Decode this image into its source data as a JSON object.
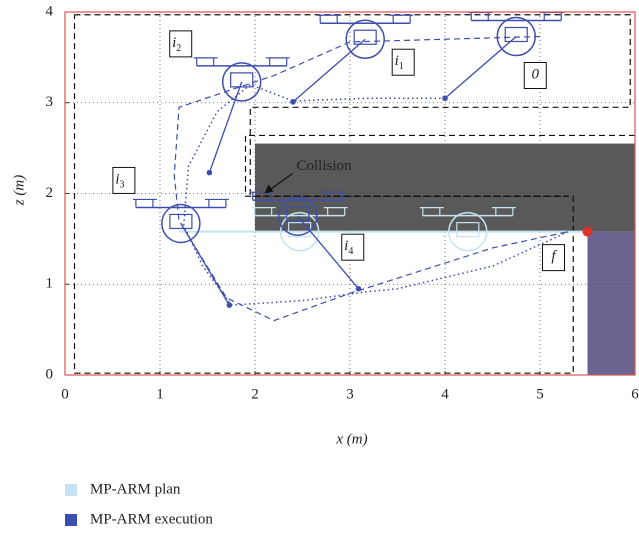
{
  "chart_data": {
    "type": "trajectory",
    "xlabel": "x (m)",
    "ylabel": "z (m)",
    "xlim": [
      0,
      6
    ],
    "ylim": [
      0,
      4
    ],
    "xticks": [
      0,
      1,
      2,
      3,
      4,
      5,
      6
    ],
    "yticks": [
      0,
      1,
      2,
      3,
      4
    ],
    "grid": true,
    "frame_color": "#d9534f",
    "obstacles": [
      {
        "x": [
          2,
          6
        ],
        "z": [
          1.58,
          2.55
        ],
        "color": "#595959"
      },
      {
        "x": [
          5.5,
          6
        ],
        "z": [
          0,
          1.58
        ],
        "color": "#6b6490"
      }
    ],
    "regions": [
      {
        "x": [
          0.1,
          5.95,
          5.95,
          1.95,
          1.95,
          5.35,
          5.35,
          0.1,
          0.1
        ],
        "z": [
          3.97,
          3.97,
          2.95,
          2.95,
          1.97,
          1.97,
          0.02,
          0.02,
          3.97
        ]
      },
      {
        "x": [
          6,
          1.9,
          1.9,
          5.3
        ],
        "z": [
          2.64,
          2.64,
          1.97,
          1.97
        ]
      }
    ],
    "series": [
      {
        "name": "MP-ARM plan",
        "color": "#c5e3f3",
        "x": [
          1.2,
          5.5
        ],
        "values": [
          1.58,
          1.58
        ]
      },
      {
        "name": "MP-ARM execution",
        "color": "#3d4eae",
        "x": [
          4.0,
          3.2,
          2.4,
          1.95,
          1.6,
          1.3,
          1.25,
          1.45,
          1.75,
          2.5,
          3.2,
          3.5,
          4.5,
          5.3
        ],
        "values": [
          3.05,
          3.05,
          3.02,
          3.2,
          2.9,
          2.3,
          1.65,
          1.2,
          0.77,
          0.82,
          0.92,
          0.95,
          1.2,
          1.58
        ]
      }
    ],
    "reference": {
      "color": "#3d4eae",
      "x": [
        5.0,
        3.0,
        2.2,
        1.2,
        1.15,
        1.2,
        1.7,
        2.2,
        3.0,
        4.5,
        5.3
      ],
      "values": [
        3.73,
        3.67,
        3.3,
        2.95,
        2.2,
        1.7,
        0.85,
        0.6,
        0.9,
        1.4,
        1.58
      ]
    },
    "drones": [
      {
        "label": "0",
        "x": 4.75,
        "z": 3.73,
        "load": [
          4.0,
          3.05
        ]
      },
      {
        "label": "i",
        "sub": "1",
        "x": 3.16,
        "z": 3.7,
        "load": [
          2.4,
          3.01
        ]
      },
      {
        "label": "i",
        "sub": "2",
        "x": 1.86,
        "z": 3.23,
        "load": [
          1.52,
          2.23
        ]
      },
      {
        "label": "i",
        "sub": "3",
        "x": 1.22,
        "z": 1.67,
        "load": [
          1.73,
          0.77
        ]
      },
      {
        "label": "i",
        "sub": "4",
        "x": 2.45,
        "z": 1.75,
        "load": [
          3.09,
          0.95
        ]
      }
    ],
    "plan_drones": [
      {
        "x": 2.47,
        "z": 1.58
      },
      {
        "x": 4.24,
        "z": 1.58
      }
    ],
    "goal": {
      "label": "f",
      "x": 5.5,
      "z": 1.58,
      "color": "#e0302a"
    },
    "annotation": {
      "text": "Collision",
      "x": 2.1,
      "z": 2.0
    }
  }
}
